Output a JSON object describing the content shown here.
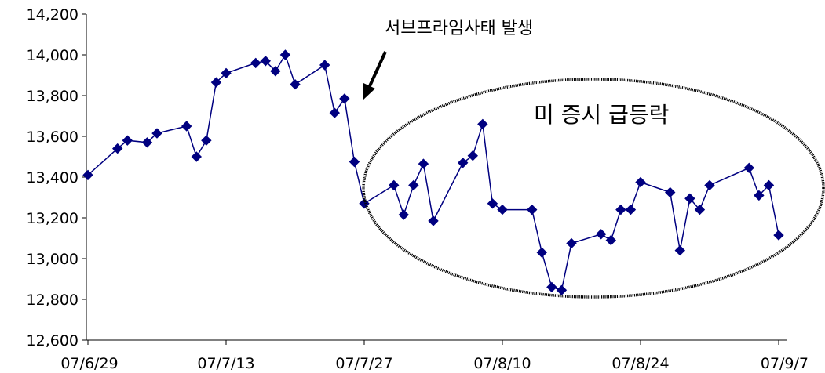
{
  "chart_data": {
    "type": "line",
    "title": "",
    "xlabel": "",
    "ylabel": "",
    "ylim": [
      12600,
      14200
    ],
    "yticks": [
      12600,
      12800,
      13000,
      13200,
      13400,
      13600,
      13800,
      14000,
      14200
    ],
    "ytick_labels": [
      "12,600",
      "12,800",
      "13,000",
      "13,200",
      "13,400",
      "13,600",
      "13,800",
      "14,000",
      "14,200"
    ],
    "xlim": [
      "2007-06-29",
      "2007-09-07"
    ],
    "xticks": [
      "2007-06-29",
      "2007-07-13",
      "2007-07-27",
      "2007-08-10",
      "2007-08-24",
      "2007-09-07"
    ],
    "xtick_labels": [
      "07/6/29",
      "07/7/13",
      "07/7/27",
      "07/8/10",
      "07/8/24",
      "07/9/7"
    ],
    "grid": false,
    "series": [
      {
        "color": "#000080",
        "marker": "diamond",
        "x": [
          "2007-06-29",
          "2007-07-02",
          "2007-07-03",
          "2007-07-05",
          "2007-07-06",
          "2007-07-09",
          "2007-07-10",
          "2007-07-11",
          "2007-07-12",
          "2007-07-13",
          "2007-07-16",
          "2007-07-17",
          "2007-07-18",
          "2007-07-19",
          "2007-07-20",
          "2007-07-23",
          "2007-07-24",
          "2007-07-25",
          "2007-07-26",
          "2007-07-27",
          "2007-07-30",
          "2007-07-31",
          "2007-08-01",
          "2007-08-02",
          "2007-08-03",
          "2007-08-06",
          "2007-08-07",
          "2007-08-08",
          "2007-08-09",
          "2007-08-10",
          "2007-08-13",
          "2007-08-14",
          "2007-08-15",
          "2007-08-16",
          "2007-08-17",
          "2007-08-20",
          "2007-08-21",
          "2007-08-22",
          "2007-08-23",
          "2007-08-24",
          "2007-08-27",
          "2007-08-28",
          "2007-08-29",
          "2007-08-30",
          "2007-08-31",
          "2007-09-04",
          "2007-09-05",
          "2007-09-06",
          "2007-09-07"
        ],
        "y": [
          13410,
          13540,
          13580,
          13570,
          13615,
          13650,
          13500,
          13580,
          13865,
          13910,
          13960,
          13970,
          13920,
          14000,
          13855,
          13950,
          13715,
          13785,
          13475,
          13270,
          13360,
          13215,
          13360,
          13465,
          13185,
          13470,
          13505,
          13660,
          13270,
          13240,
          13240,
          13030,
          12860,
          12845,
          13075,
          13120,
          13090,
          13240,
          13240,
          13375,
          13325,
          13040,
          13295,
          13240,
          13360,
          13445,
          13310,
          13360,
          13115
        ]
      }
    ],
    "annotations": [
      {
        "text": "서브프라임사태 발생"
      },
      {
        "text": "미 증시 급등락"
      }
    ]
  }
}
